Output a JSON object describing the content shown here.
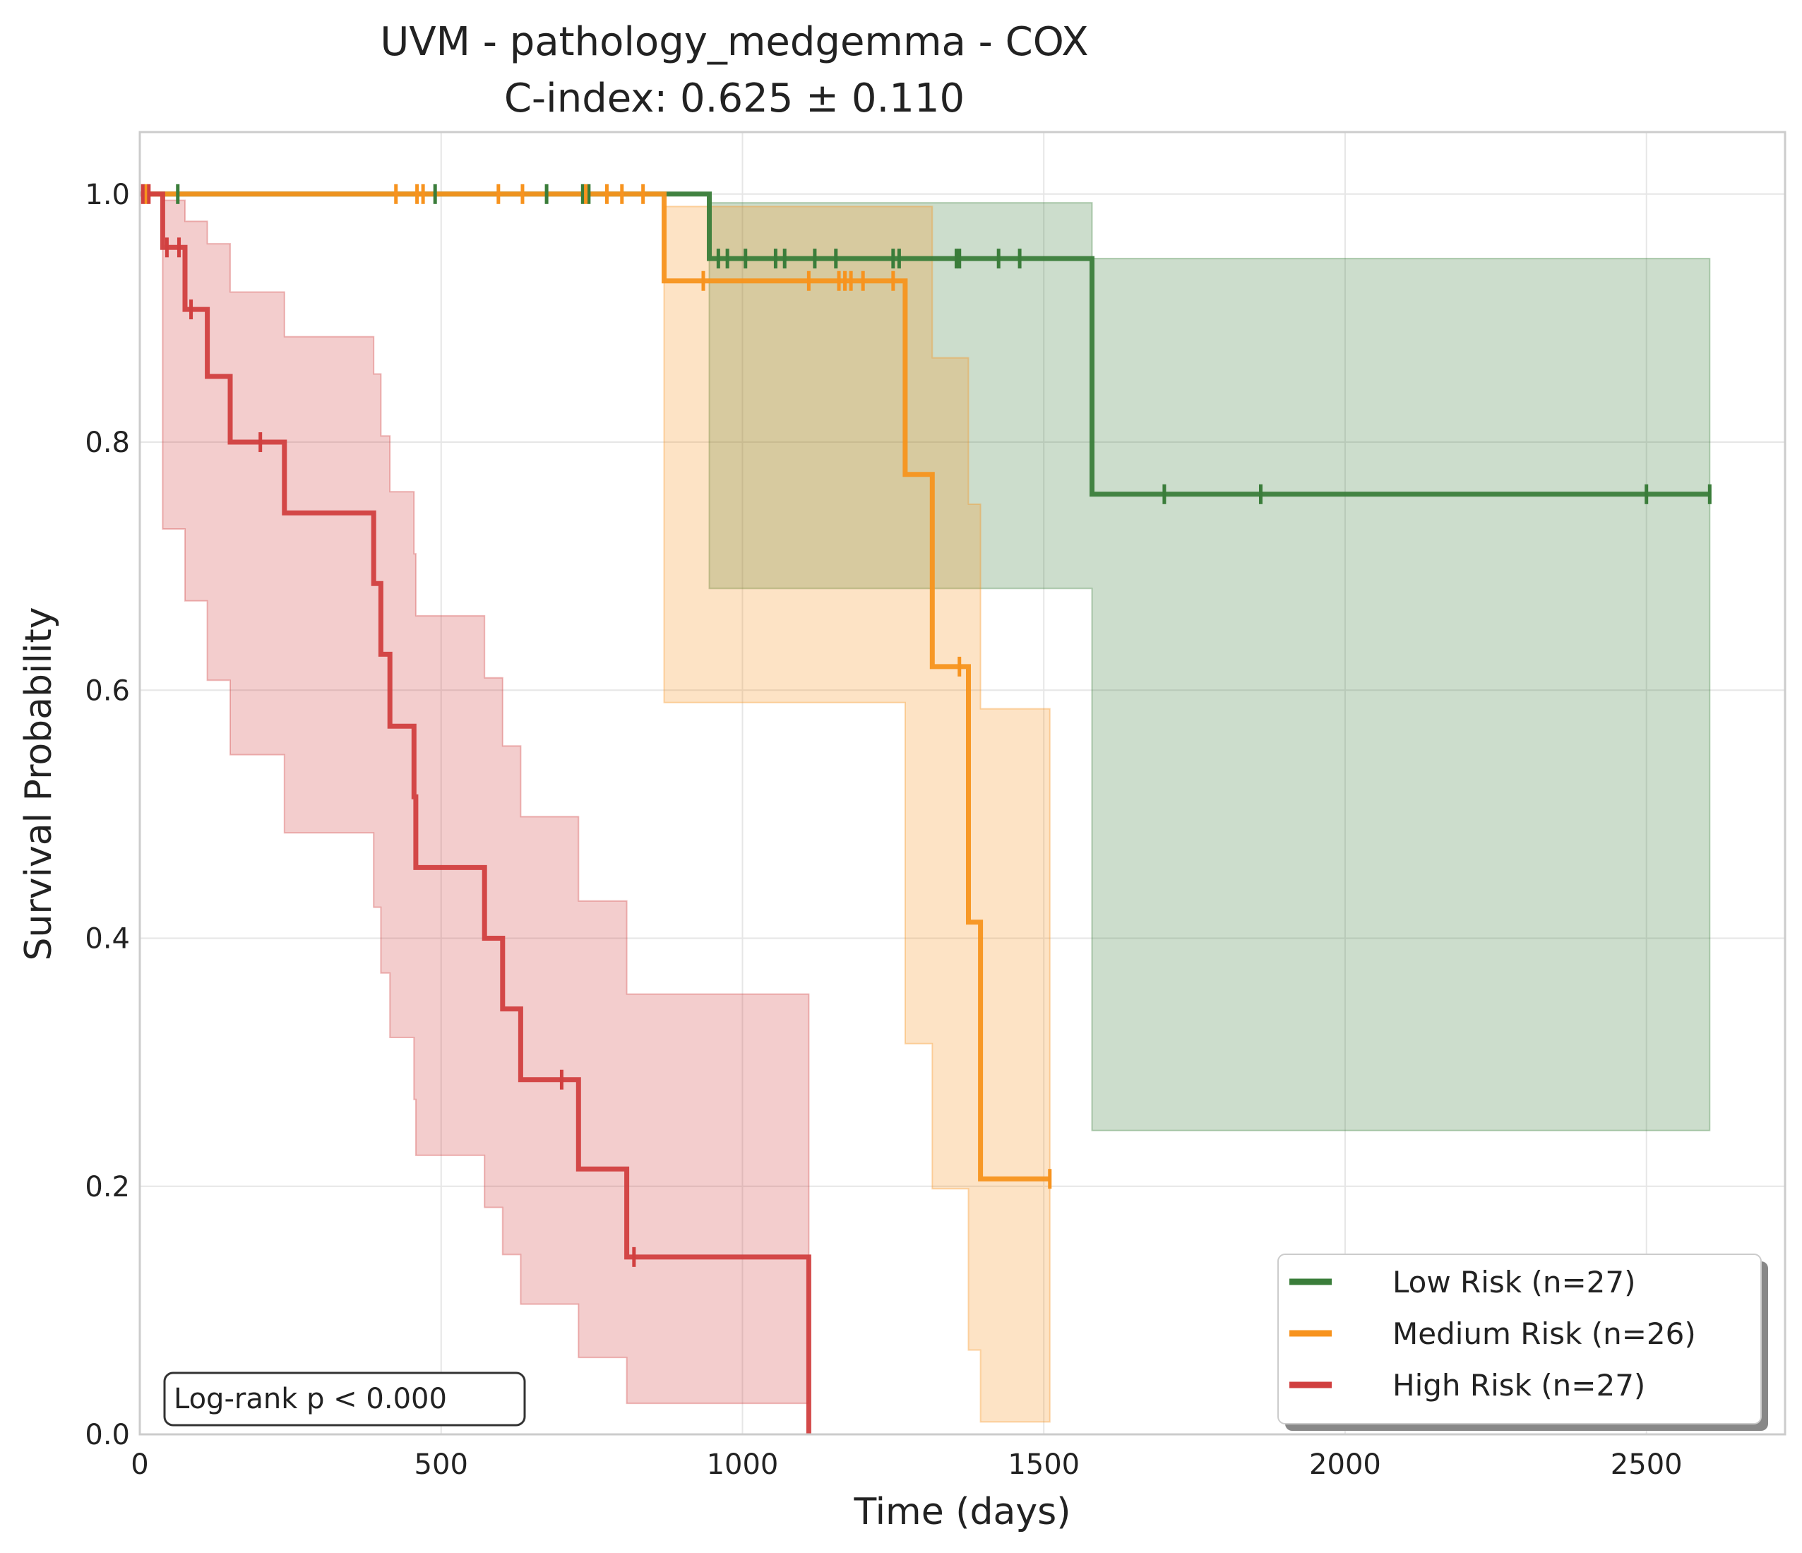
{
  "chart_data": {
    "type": "line",
    "title": "UVM - pathology_medgemma - COX",
    "subtitle": "C-index: 0.625 ± 0.110",
    "xlabel": "Time (days)",
    "ylabel": "Survival Probability",
    "xlim": [
      0,
      2730
    ],
    "ylim": [
      0,
      1.05
    ],
    "x_ticks": [
      0,
      500,
      1000,
      1500,
      2000,
      2500
    ],
    "x_tick_labels": [
      "0",
      "500",
      "1000",
      "1500",
      "2000",
      "2500"
    ],
    "y_ticks": [
      0.0,
      0.2,
      0.4,
      0.6,
      0.8,
      1.0
    ],
    "y_tick_labels": [
      "0.0",
      "0.2",
      "0.4",
      "0.6",
      "0.8",
      "1.0"
    ],
    "grid": true,
    "legend_position": "bottom-right",
    "annotation": "Log-rank p < 0.000",
    "series": [
      {
        "name": "Low Risk (n=27)",
        "color": "#3a7d3a",
        "steps": [
          [
            0,
            1.0
          ],
          [
            945,
            0.948
          ],
          [
            1580,
            0.758
          ],
          [
            2605,
            0.758
          ]
        ],
        "ci": [
          [
            0,
            1.0,
            1.0
          ],
          [
            945,
            0.682,
            0.993
          ],
          [
            1580,
            0.245,
            0.948
          ],
          [
            2605,
            0.245,
            0.948
          ]
        ],
        "censored": [
          [
            63,
            1.0
          ],
          [
            490,
            1.0
          ],
          [
            675,
            1.0
          ],
          [
            735,
            1.0
          ],
          [
            745,
            1.0
          ],
          [
            960,
            0.948
          ],
          [
            975,
            0.948
          ],
          [
            1005,
            0.948
          ],
          [
            1055,
            0.948
          ],
          [
            1070,
            0.948
          ],
          [
            1120,
            0.948
          ],
          [
            1155,
            0.948
          ],
          [
            1250,
            0.948
          ],
          [
            1260,
            0.948
          ],
          [
            1355,
            0.948
          ],
          [
            1360,
            0.948
          ],
          [
            1425,
            0.948
          ],
          [
            1460,
            0.948
          ],
          [
            1700,
            0.758
          ],
          [
            1860,
            0.758
          ],
          [
            2500,
            0.758
          ],
          [
            2605,
            0.758
          ]
        ]
      },
      {
        "name": "Medium Risk (n=26)",
        "color": "#f7931e",
        "steps": [
          [
            0,
            1.0
          ],
          [
            870,
            0.93
          ],
          [
            1270,
            0.774
          ],
          [
            1315,
            0.619
          ],
          [
            1375,
            0.413
          ],
          [
            1395,
            0.206
          ],
          [
            1510,
            0.206
          ]
        ],
        "ci": [
          [
            0,
            1.0,
            1.0
          ],
          [
            870,
            0.59,
            0.99
          ],
          [
            1270,
            0.315,
            0.99
          ],
          [
            1315,
            0.198,
            0.868
          ],
          [
            1375,
            0.068,
            0.75
          ],
          [
            1395,
            0.01,
            0.585
          ],
          [
            1510,
            0.01,
            0.585
          ]
        ],
        "censored": [
          [
            10,
            1.0
          ],
          [
            425,
            1.0
          ],
          [
            460,
            1.0
          ],
          [
            470,
            1.0
          ],
          [
            595,
            1.0
          ],
          [
            635,
            1.0
          ],
          [
            740,
            1.0
          ],
          [
            775,
            1.0
          ],
          [
            800,
            1.0
          ],
          [
            835,
            1.0
          ],
          [
            935,
            0.93
          ],
          [
            1110,
            0.93
          ],
          [
            1160,
            0.93
          ],
          [
            1170,
            0.93
          ],
          [
            1180,
            0.93
          ],
          [
            1200,
            0.93
          ],
          [
            1250,
            0.93
          ],
          [
            1360,
            0.619
          ],
          [
            1510,
            0.206
          ]
        ]
      },
      {
        "name": "High Risk (n=27)",
        "color": "#d13f3f",
        "steps": [
          [
            0,
            1.0
          ],
          [
            38,
            0.957
          ],
          [
            75,
            0.907
          ],
          [
            112,
            0.853
          ],
          [
            150,
            0.8
          ],
          [
            240,
            0.743
          ],
          [
            388,
            0.686
          ],
          [
            400,
            0.629
          ],
          [
            415,
            0.571
          ],
          [
            455,
            0.514
          ],
          [
            458,
            0.457
          ],
          [
            572,
            0.4
          ],
          [
            602,
            0.343
          ],
          [
            632,
            0.286
          ],
          [
            728,
            0.214
          ],
          [
            808,
            0.143
          ],
          [
            1110,
            0.0
          ]
        ],
        "ci": [
          [
            0,
            1.0,
            1.0
          ],
          [
            38,
            0.73,
            0.995
          ],
          [
            75,
            0.672,
            0.978
          ],
          [
            112,
            0.608,
            0.96
          ],
          [
            150,
            0.548,
            0.921
          ],
          [
            240,
            0.485,
            0.885
          ],
          [
            388,
            0.425,
            0.855
          ],
          [
            400,
            0.372,
            0.805
          ],
          [
            415,
            0.32,
            0.76
          ],
          [
            455,
            0.27,
            0.71
          ],
          [
            458,
            0.225,
            0.66
          ],
          [
            572,
            0.183,
            0.61
          ],
          [
            602,
            0.145,
            0.555
          ],
          [
            632,
            0.105,
            0.498
          ],
          [
            728,
            0.062,
            0.43
          ],
          [
            808,
            0.025,
            0.355
          ],
          [
            1110,
            0.025,
            0.355
          ]
        ],
        "censored": [
          [
            5,
            1.0
          ],
          [
            15,
            1.0
          ],
          [
            45,
            0.957
          ],
          [
            65,
            0.957
          ],
          [
            85,
            0.907
          ],
          [
            200,
            0.8
          ],
          [
            700,
            0.286
          ],
          [
            820,
            0.143
          ]
        ]
      }
    ]
  }
}
